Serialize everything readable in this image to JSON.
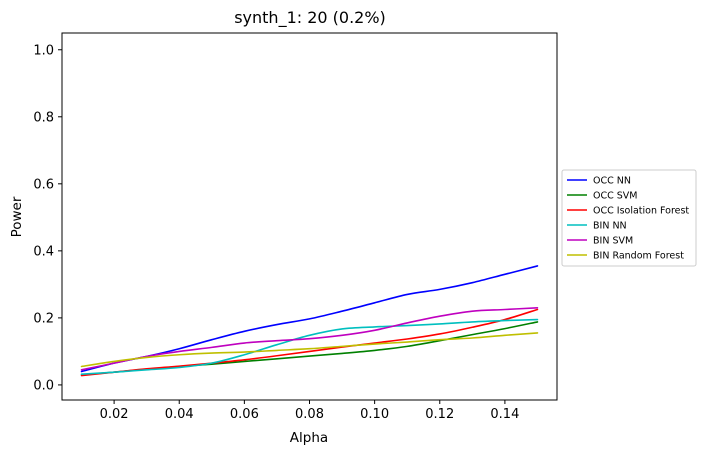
{
  "chart_data": {
    "type": "line",
    "title": "synth_1: 20 (0.2%)",
    "xlabel": "Alpha",
    "ylabel": "Power",
    "xlim": [
      0.004,
      0.156
    ],
    "ylim": [
      -0.045,
      1.05
    ],
    "xticks": [
      0.02,
      0.04,
      0.06,
      0.08,
      0.1,
      0.12,
      0.14
    ],
    "xtick_labels": [
      "0.02",
      "0.04",
      "0.06",
      "0.08",
      "0.10",
      "0.12",
      "0.14"
    ],
    "yticks": [
      0.0,
      0.2,
      0.4,
      0.6,
      0.8,
      1.0
    ],
    "ytick_labels": [
      "0.0",
      "0.2",
      "0.4",
      "0.6",
      "0.8",
      "1.0"
    ],
    "grid": false,
    "legend_position": "outside-right",
    "x": [
      0.01,
      0.02,
      0.03,
      0.04,
      0.05,
      0.06,
      0.07,
      0.08,
      0.09,
      0.1,
      0.11,
      0.12,
      0.13,
      0.14,
      0.15
    ],
    "series": [
      {
        "name": "OCC NN",
        "color": "#0000ff",
        "values": [
          0.04,
          0.065,
          0.085,
          0.108,
          0.135,
          0.16,
          0.18,
          0.197,
          0.22,
          0.245,
          0.27,
          0.285,
          0.305,
          0.33,
          0.355
        ]
      },
      {
        "name": "OCC SVM",
        "color": "#008000",
        "values": [
          0.03,
          0.038,
          0.047,
          0.055,
          0.062,
          0.07,
          0.078,
          0.086,
          0.094,
          0.103,
          0.115,
          0.132,
          0.15,
          0.168,
          0.188
        ]
      },
      {
        "name": "OCC Isolation Forest",
        "color": "#ff0000",
        "values": [
          0.028,
          0.038,
          0.048,
          0.056,
          0.065,
          0.075,
          0.087,
          0.1,
          0.113,
          0.125,
          0.137,
          0.152,
          0.172,
          0.195,
          0.225
        ]
      },
      {
        "name": "BIN NN",
        "color": "#00bfbf",
        "values": [
          0.032,
          0.038,
          0.045,
          0.052,
          0.065,
          0.09,
          0.12,
          0.148,
          0.167,
          0.173,
          0.177,
          0.182,
          0.188,
          0.192,
          0.195
        ]
      },
      {
        "name": "BIN SVM",
        "color": "#bf00bf",
        "values": [
          0.045,
          0.065,
          0.085,
          0.1,
          0.112,
          0.125,
          0.132,
          0.138,
          0.148,
          0.163,
          0.185,
          0.205,
          0.22,
          0.225,
          0.23
        ]
      },
      {
        "name": "BIN Random Forest",
        "color": "#bfbf00",
        "values": [
          0.055,
          0.07,
          0.082,
          0.09,
          0.095,
          0.098,
          0.103,
          0.108,
          0.115,
          0.122,
          0.128,
          0.135,
          0.14,
          0.148,
          0.155
        ]
      }
    ]
  }
}
